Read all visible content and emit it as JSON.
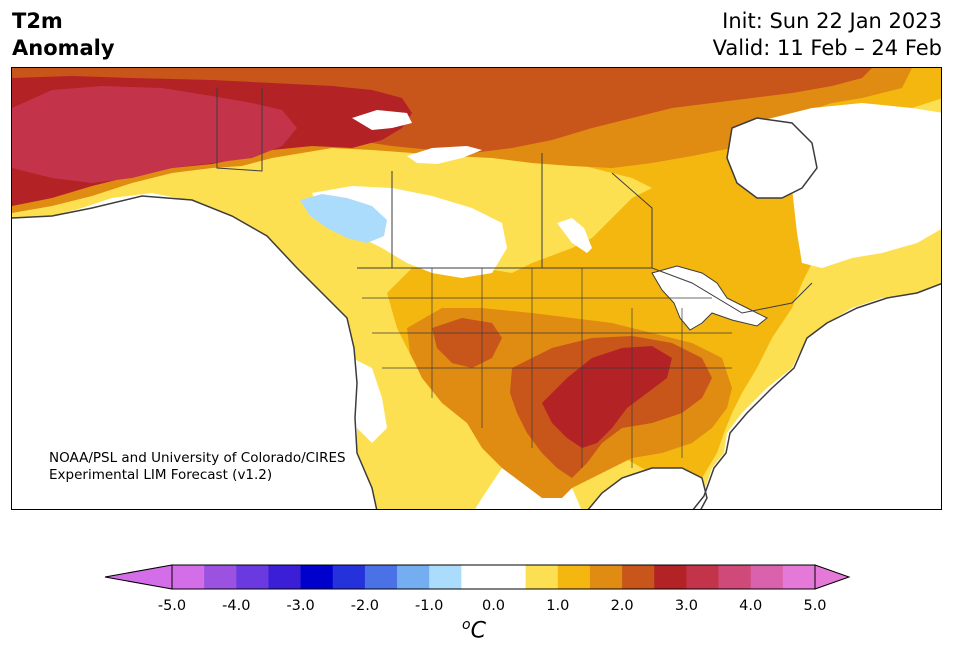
{
  "title": {
    "line1": "T2m",
    "line2": "Anomaly"
  },
  "header": {
    "init": "Init: Sun 22 Jan 2023",
    "valid": "Valid: 11 Feb – 24 Feb"
  },
  "credit": {
    "line1": "NOAA/PSL and University of Colorado/CIRES",
    "line2": "Experimental LIM Forecast (v1.2)"
  },
  "colorbar": {
    "unit": "C",
    "unit_prefix": "o",
    "ticks": [
      "-5.0",
      "-4.0",
      "-3.0",
      "-2.0",
      "-1.0",
      "0.0",
      "1.0",
      "2.0",
      "3.0",
      "4.0",
      "5.0"
    ],
    "colors": [
      "#d36ee8",
      "#9b52e0",
      "#6a3ae0",
      "#3a1fd6",
      "#0000cd",
      "#2532dc",
      "#4a72e6",
      "#74aef0",
      "#acdcfc",
      "#ffffff",
      "#ffffff",
      "#fde052",
      "#f4b70f",
      "#e08b12",
      "#c8551a",
      "#b32225",
      "#c3344b",
      "#cf4a79",
      "#da61ab",
      "#e579d8"
    ],
    "under_color": "#d36ee8",
    "over_color": "#e579d8"
  },
  "map_colors": {
    "ocean": "#ffffff",
    "coast": "#3c3c3c",
    "lv1": "#fde052",
    "lv2": "#f4b70f",
    "lv3": "#e08b12",
    "lv4": "#c8551a",
    "lv5": "#b32225",
    "lv6": "#c3344b",
    "neg1": "#acdcfc"
  }
}
